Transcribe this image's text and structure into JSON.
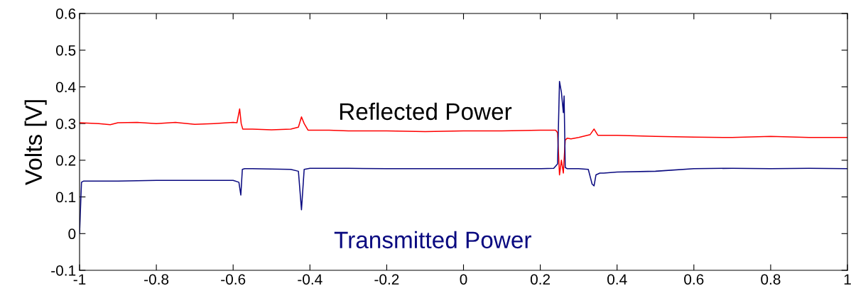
{
  "chart_data": {
    "type": "line",
    "ylabel": "Volts [V]",
    "xlim": [
      -1,
      1
    ],
    "xticks": [
      -1,
      -0.8,
      -0.6,
      -0.4,
      -0.2,
      0,
      0.2,
      0.4,
      0.6,
      0.8,
      1
    ],
    "ylim": [
      -0.1,
      0.6
    ],
    "yticks": [
      -0.1,
      0,
      0.1,
      0.2,
      0.3,
      0.4,
      0.5,
      0.6
    ],
    "grid": false,
    "legend": false,
    "marker": "none",
    "line_style": "solid",
    "series": [
      {
        "name": "Reflected Power",
        "color": "#ff0000",
        "x": [
          -1,
          -0.95,
          -0.92,
          -0.9,
          -0.85,
          -0.8,
          -0.75,
          -0.7,
          -0.65,
          -0.6,
          -0.59,
          -0.583,
          -0.579,
          -0.575,
          -0.55,
          -0.5,
          -0.45,
          -0.43,
          -0.422,
          -0.415,
          -0.405,
          -0.35,
          -0.3,
          -0.2,
          -0.1,
          0,
          0.1,
          0.2,
          0.24,
          0.245,
          0.25,
          0.255,
          0.26,
          0.265,
          0.27,
          0.28,
          0.3,
          0.33,
          0.34,
          0.35,
          0.4,
          0.5,
          0.6,
          0.7,
          0.8,
          0.9,
          1
        ],
        "values": [
          0.302,
          0.3,
          0.297,
          0.302,
          0.303,
          0.3,
          0.303,
          0.298,
          0.3,
          0.303,
          0.302,
          0.34,
          0.3,
          0.285,
          0.285,
          0.283,
          0.285,
          0.29,
          0.318,
          0.3,
          0.282,
          0.282,
          0.28,
          0.28,
          0.278,
          0.28,
          0.28,
          0.282,
          0.282,
          0.275,
          0.16,
          0.2,
          0.165,
          0.255,
          0.26,
          0.258,
          0.262,
          0.27,
          0.285,
          0.268,
          0.268,
          0.265,
          0.263,
          0.262,
          0.265,
          0.262,
          0.262
        ]
      },
      {
        "name": "Transmitted Power",
        "color": "#0a0a80",
        "x": [
          -1,
          -0.995,
          -0.99,
          -0.9,
          -0.8,
          -0.7,
          -0.6,
          -0.585,
          -0.58,
          -0.576,
          -0.57,
          -0.55,
          -0.5,
          -0.45,
          -0.43,
          -0.422,
          -0.415,
          -0.4,
          -0.3,
          -0.2,
          -0.1,
          0,
          0.1,
          0.2,
          0.235,
          0.245,
          0.25,
          0.255,
          0.26,
          0.262,
          0.265,
          0.27,
          0.3,
          0.325,
          0.335,
          0.34,
          0.345,
          0.355,
          0.365,
          0.4,
          0.5,
          0.6,
          0.7,
          0.8,
          0.9,
          1
        ],
        "values": [
          0,
          0.14,
          0.143,
          0.143,
          0.145,
          0.145,
          0.145,
          0.14,
          0.105,
          0.175,
          0.177,
          0.177,
          0.176,
          0.175,
          0.17,
          0.065,
          0.175,
          0.178,
          0.178,
          0.177,
          0.177,
          0.177,
          0.177,
          0.177,
          0.178,
          0.19,
          0.415,
          0.385,
          0.33,
          0.375,
          0.18,
          0.177,
          0.177,
          0.175,
          0.135,
          0.13,
          0.16,
          0.165,
          0.165,
          0.168,
          0.17,
          0.177,
          0.178,
          0.177,
          0.178,
          0.177
        ]
      }
    ]
  }
}
